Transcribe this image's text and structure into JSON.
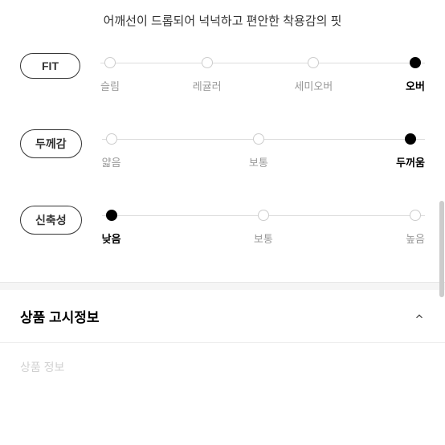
{
  "description": "어깨선이 드롭되어 넉넉하고 편안한 착용감의 핏",
  "attributes": [
    {
      "label": "FIT",
      "options": [
        "슬림",
        "레귤러",
        "세미오버",
        "오버"
      ],
      "selectedIndex": 3
    },
    {
      "label": "두께감",
      "options": [
        "얇음",
        "보통",
        "두꺼움"
      ],
      "selectedIndex": 2
    },
    {
      "label": "신축성",
      "options": [
        "낮음",
        "보통",
        "높음"
      ],
      "selectedIndex": 0
    }
  ],
  "accordion": {
    "title": "상품 고시정보"
  },
  "nextSection": "상품 정보",
  "colors": {
    "text_primary": "#333333",
    "text_muted": "#999999",
    "text_strong": "#000000",
    "line": "#dddddd",
    "dot_border": "#cccccc",
    "dot_filled": "#000000",
    "divider_bg": "#f5f5f5",
    "scrollbar": "#cccccc"
  }
}
